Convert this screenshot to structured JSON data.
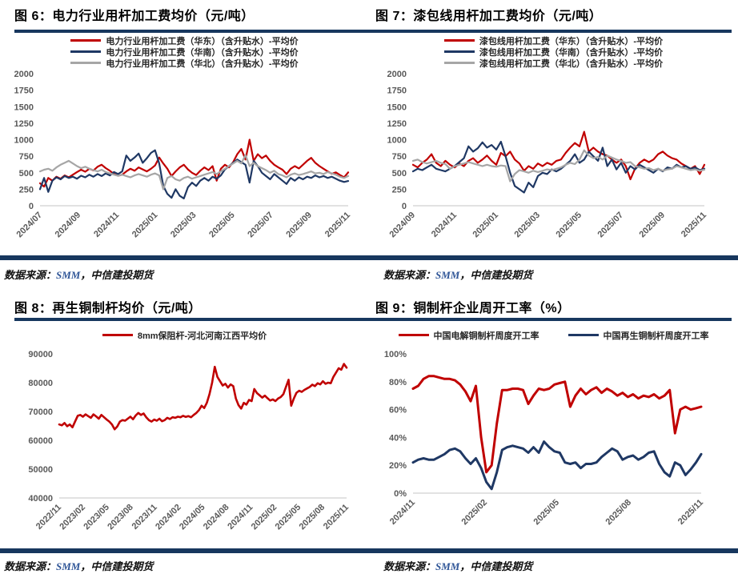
{
  "source_note": {
    "prefix": "数据来源：",
    "smm": "SMM",
    "suffix": "，中信建投期货"
  },
  "colors": {
    "accent_bar": "#17375E",
    "series_red": "#C00000",
    "series_navy": "#1F3864",
    "series_gray": "#A6A6A6",
    "axis_text": "#595959",
    "smm_blue": "#2F5597",
    "baseline": "#D9D9D9"
  },
  "chart_data": [
    {
      "id": "fig6",
      "type": "line",
      "title": "图 6：电力行业用杆加工费均价（元/吨）",
      "xlabel": "",
      "ylabel": "",
      "grid": false,
      "legend_position": "top",
      "ylim": [
        0,
        2000
      ],
      "yticks": [
        {
          "v": 0,
          "label": "0"
        },
        {
          "v": 250,
          "label": "250"
        },
        {
          "v": 500,
          "label": "500"
        },
        {
          "v": 750,
          "label": "750"
        },
        {
          "v": 1000,
          "label": "1000"
        },
        {
          "v": 1250,
          "label": "1250"
        },
        {
          "v": 1500,
          "label": "1500"
        },
        {
          "v": 1750,
          "label": "1750"
        },
        {
          "v": 2000,
          "label": "2000"
        }
      ],
      "xticks": [
        "2024/07",
        "2024/09",
        "2024/11",
        "2025/01",
        "2025/03",
        "2025/05",
        "2025/07",
        "2025/09",
        "2025/11"
      ],
      "layout": {
        "l": 50,
        "r": 26,
        "t": 6,
        "b": 61
      },
      "stroke": 2.2,
      "series": [
        {
          "name": "电力行业用杆加工费（华东）（含升贴水）-平均价",
          "color": "#C00000",
          "values": [
            340,
            290,
            420,
            380,
            440,
            410,
            460,
            430,
            470,
            510,
            545,
            515,
            560,
            535,
            590,
            620,
            570,
            530,
            480,
            455,
            470,
            520,
            560,
            530,
            580,
            550,
            520,
            560,
            610,
            730,
            640,
            560,
            450,
            520,
            580,
            620,
            550,
            500,
            465,
            530,
            580,
            540,
            600,
            380,
            560,
            620,
            580,
            660,
            780,
            860,
            700,
            1000,
            680,
            780,
            720,
            760,
            680,
            620,
            580,
            545,
            480,
            560,
            600,
            565,
            620,
            680,
            725,
            650,
            600,
            560,
            520,
            485,
            505,
            465,
            430,
            505
          ]
        },
        {
          "name": "电力行业用杆加工费（华南）（含升贴水）-平均价",
          "color": "#1F3864",
          "values": [
            250,
            420,
            210,
            380,
            430,
            400,
            450,
            420,
            440,
            410,
            455,
            430,
            470,
            440,
            480,
            450,
            490,
            460,
            510,
            480,
            520,
            760,
            680,
            730,
            790,
            650,
            720,
            800,
            840,
            640,
            300,
            180,
            120,
            250,
            150,
            110,
            280,
            350,
            300,
            380,
            420,
            380,
            440,
            410,
            460,
            550,
            600,
            650,
            700,
            660,
            620,
            350,
            680,
            600,
            500,
            450,
            400,
            480,
            430,
            380,
            330,
            420,
            380,
            430,
            400,
            440,
            420,
            460,
            430,
            450,
            420,
            440,
            410,
            380,
            360,
            375
          ]
        },
        {
          "name": "电力行业用杆加工费（华北）（含升贴水）-平均价",
          "color": "#A6A6A6",
          "values": [
            520,
            545,
            560,
            530,
            580,
            620,
            650,
            680,
            640,
            600,
            570,
            590,
            560,
            540,
            520,
            545,
            510,
            490,
            470,
            455,
            470,
            450,
            430,
            460,
            480,
            460,
            440,
            470,
            490,
            460,
            250,
            420,
            450,
            400,
            380,
            420,
            440,
            410,
            430,
            450,
            470,
            490,
            510,
            480,
            520,
            560,
            600,
            640,
            680,
            640,
            770,
            600,
            650,
            600,
            570,
            540,
            500,
            530,
            480,
            460,
            430,
            470,
            490,
            465,
            480,
            500,
            520,
            490,
            500,
            480,
            510,
            490,
            470,
            440,
            420,
            450
          ]
        }
      ]
    },
    {
      "id": "fig7",
      "type": "line",
      "title": "图 7：漆包线用杆加工费均价（元/吨）",
      "xlabel": "",
      "ylabel": "",
      "grid": false,
      "legend_position": "top",
      "ylim": [
        0,
        2000
      ],
      "yticks": [
        {
          "v": 0,
          "label": "0"
        },
        {
          "v": 250,
          "label": "250"
        },
        {
          "v": 500,
          "label": "500"
        },
        {
          "v": 750,
          "label": "750"
        },
        {
          "v": 1000,
          "label": "1000"
        },
        {
          "v": 1250,
          "label": "1250"
        },
        {
          "v": 1500,
          "label": "1500"
        },
        {
          "v": 1750,
          "label": "1750"
        },
        {
          "v": 2000,
          "label": "2000"
        }
      ],
      "xticks": [
        "2024/09",
        "2024/11",
        "2025/01",
        "2025/03",
        "2025/05",
        "2025/07",
        "2025/09",
        "2025/11"
      ],
      "layout": {
        "l": 55,
        "r": 42,
        "t": 6,
        "b": 61
      },
      "stroke": 2.2,
      "series": [
        {
          "name": "漆包线用杆加工费（华东）（含升贴水）-平均价",
          "color": "#C00000",
          "values": [
            620,
            580,
            650,
            700,
            780,
            650,
            600,
            680,
            620,
            580,
            640,
            600,
            680,
            720,
            650,
            700,
            760,
            680,
            620,
            800,
            750,
            820,
            700,
            640,
            530,
            600,
            560,
            640,
            600,
            650,
            620,
            680,
            700,
            800,
            880,
            950,
            900,
            1120,
            820,
            880,
            820,
            780,
            760,
            700,
            650,
            700,
            600,
            400,
            560,
            650,
            700,
            660,
            700,
            780,
            820,
            760,
            720,
            700,
            640,
            600,
            560,
            600,
            480,
            620
          ]
        },
        {
          "name": "漆包线用杆加工费（华南）（含升贴水）-平均价",
          "color": "#1F3864",
          "values": [
            520,
            560,
            540,
            580,
            620,
            560,
            540,
            520,
            560,
            600,
            660,
            720,
            900,
            820,
            870,
            960,
            880,
            920,
            850,
            970,
            750,
            500,
            300,
            250,
            200,
            350,
            280,
            450,
            500,
            480,
            550,
            520,
            560,
            620,
            680,
            780,
            650,
            700,
            820,
            750,
            680,
            880,
            600,
            700,
            550,
            650,
            500,
            600,
            550,
            620,
            580,
            540,
            500,
            560,
            520,
            580,
            560,
            620,
            580,
            600,
            560,
            580,
            540,
            560
          ]
        },
        {
          "name": "漆包线用杆加工费（华北）（含升贴水）-平均价",
          "color": "#A6A6A6",
          "values": [
            680,
            700,
            660,
            640,
            660,
            680,
            650,
            630,
            560,
            600,
            620,
            640,
            660,
            640,
            620,
            600,
            620,
            600,
            590,
            610,
            600,
            370,
            480,
            540,
            520,
            500,
            530,
            510,
            530,
            550,
            540,
            560,
            580,
            620,
            650,
            630,
            700,
            840,
            760,
            720,
            740,
            700,
            760,
            730,
            700,
            680,
            650,
            660,
            600,
            580,
            560,
            570,
            540,
            560,
            530,
            550,
            560,
            600,
            580,
            560,
            540,
            550,
            530,
            545
          ]
        }
      ]
    },
    {
      "id": "fig8",
      "type": "line",
      "title": "图 8：再生铜制杆均价（元/吨）",
      "xlabel": "",
      "ylabel": "",
      "grid": false,
      "legend_position": "top",
      "ylim": [
        40000,
        90000
      ],
      "yticks": [
        {
          "v": 40000,
          "label": "40000"
        },
        {
          "v": 50000,
          "label": "50000"
        },
        {
          "v": 60000,
          "label": "60000"
        },
        {
          "v": 70000,
          "label": "70000"
        },
        {
          "v": 80000,
          "label": "80000"
        },
        {
          "v": 90000,
          "label": "90000"
        }
      ],
      "xticks": [
        "2022/11",
        "2023/02",
        "2023/05",
        "2023/08",
        "2023/11",
        "2024/02",
        "2024/05",
        "2024/08",
        "2024/11",
        "2025/02",
        "2025/05",
        "2025/08",
        "2025/11"
      ],
      "layout": {
        "l": 74,
        "r": 28,
        "t": 14,
        "b": 64
      },
      "stroke": 2.6,
      "series": [
        {
          "name": "8mm保阻杆-河北河南江西平均价",
          "color": "#C00000",
          "values": [
            65500,
            65200,
            66000,
            64900,
            65500,
            64500,
            66500,
            68500,
            68800,
            68200,
            69000,
            68400,
            67800,
            69000,
            68300,
            67500,
            68800,
            68000,
            67200,
            66500,
            65500,
            63800,
            64800,
            66500,
            67000,
            66800,
            67500,
            68200,
            67300,
            68600,
            69500,
            68800,
            69300,
            68000,
            67000,
            66500,
            67200,
            66800,
            67500,
            66600,
            67000,
            67800,
            67400,
            68000,
            67800,
            68200,
            68000,
            68500,
            68100,
            68400,
            68000,
            68800,
            69500,
            70500,
            72000,
            71200,
            73000,
            76000,
            80000,
            85500,
            82000,
            80500,
            79000,
            79600,
            78300,
            79400,
            78800,
            74500,
            72200,
            71000,
            73000,
            72400,
            74000,
            73600,
            77800,
            76400,
            75600,
            74800,
            75500,
            74600,
            73800,
            74200,
            73600,
            74500,
            75000,
            76000,
            78500,
            81000,
            72000,
            74500,
            76500,
            77200,
            76800,
            77500,
            78000,
            78500,
            79300,
            78800,
            79800,
            79400,
            80500,
            79600,
            80000,
            79800,
            82000,
            83500,
            85000,
            84500,
            86500,
            85200
          ]
        }
      ]
    },
    {
      "id": "fig9",
      "type": "line",
      "title": "图 9：铜制杆企业周开工率（%）",
      "xlabel": "",
      "ylabel": "",
      "grid": false,
      "legend_position": "top",
      "ylim": [
        0,
        100
      ],
      "yticks": [
        {
          "v": 0,
          "label": "0%"
        },
        {
          "v": 20,
          "label": "20%"
        },
        {
          "v": 40,
          "label": "40%"
        },
        {
          "v": 60,
          "label": "60%"
        },
        {
          "v": 80,
          "label": "80%"
        },
        {
          "v": 100,
          "label": "100%"
        }
      ],
      "xticks": [
        "2024/11",
        "2025/02",
        "2025/05",
        "2025/08",
        "2025/11"
      ],
      "layout": {
        "l": 55,
        "r": 46,
        "t": 14,
        "b": 70
      },
      "stroke": 3,
      "series": [
        {
          "name": "中国电解铜制杆周度开工率",
          "color": "#C00000",
          "values": [
            75,
            77,
            82,
            84,
            84,
            83,
            82,
            82,
            81,
            78,
            73,
            66,
            77,
            40,
            15,
            20,
            50,
            74,
            74,
            75,
            75,
            74,
            64,
            70,
            75,
            74,
            75,
            78,
            79,
            80,
            62,
            70,
            75,
            71,
            74,
            76,
            72,
            75,
            73,
            70,
            72,
            69,
            71,
            68,
            70,
            69,
            71,
            68,
            70,
            74,
            43,
            60,
            62,
            60,
            61,
            62
          ]
        },
        {
          "name": "中国再生铜制杆周度开工率",
          "color": "#1F3864",
          "values": [
            22,
            24,
            25,
            24,
            24,
            26,
            28,
            31,
            32,
            30,
            25,
            21,
            25,
            18,
            8,
            3,
            15,
            31,
            33,
            34,
            33,
            32,
            29,
            33,
            29,
            37,
            33,
            30,
            29,
            22,
            21,
            22,
            18,
            21,
            21,
            22,
            26,
            29,
            32,
            30,
            24,
            26,
            27,
            24,
            26,
            29,
            30,
            21,
            15,
            12,
            22,
            20,
            13,
            17,
            22,
            28
          ]
        }
      ]
    }
  ]
}
